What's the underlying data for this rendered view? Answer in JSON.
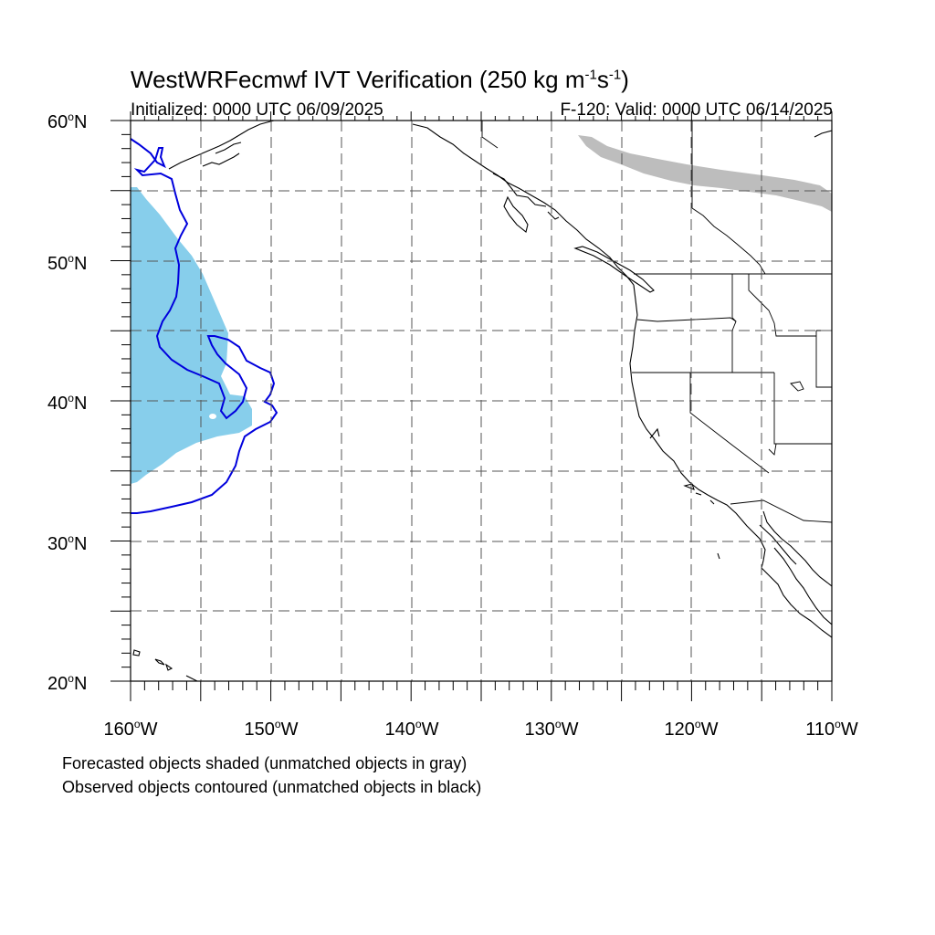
{
  "header": {
    "title_main": "WestWRFecmwf IVT Verification (250 kg m",
    "title_sup1": "-1",
    "title_mid": "s",
    "title_sup2": "-1",
    "title_end": ")",
    "initialized": "Initialized: 0000 UTC 06/09/2025",
    "valid": "F-120: Valid: 0000 UTC 06/14/2025"
  },
  "axes": {
    "lat_labels": [
      {
        "value": "60",
        "hemi": "N"
      },
      {
        "value": "50",
        "hemi": "N"
      },
      {
        "value": "40",
        "hemi": "N"
      },
      {
        "value": "30",
        "hemi": "N"
      },
      {
        "value": "20",
        "hemi": "N"
      }
    ],
    "lon_labels": [
      {
        "value": "160",
        "hemi": "W"
      },
      {
        "value": "150",
        "hemi": "W"
      },
      {
        "value": "140",
        "hemi": "W"
      },
      {
        "value": "130",
        "hemi": "W"
      },
      {
        "value": "120",
        "hemi": "W"
      },
      {
        "value": "110",
        "hemi": "W"
      }
    ],
    "lat_range": [
      20,
      60
    ],
    "lon_range": [
      -160,
      -110
    ],
    "grid_spacing_deg": 5,
    "grid": true
  },
  "legend_notes": {
    "line1": "Forecasted objects shaded (unmatched objects in gray)",
    "line2": "Observed objects contoured (unmatched objects in black)"
  },
  "colors": {
    "forecast_matched": "#87ceeb",
    "forecast_unmatched": "#bdbdbd",
    "observed_matched": "#0000dd",
    "coastline": "#000000",
    "grid": "#555555"
  }
}
